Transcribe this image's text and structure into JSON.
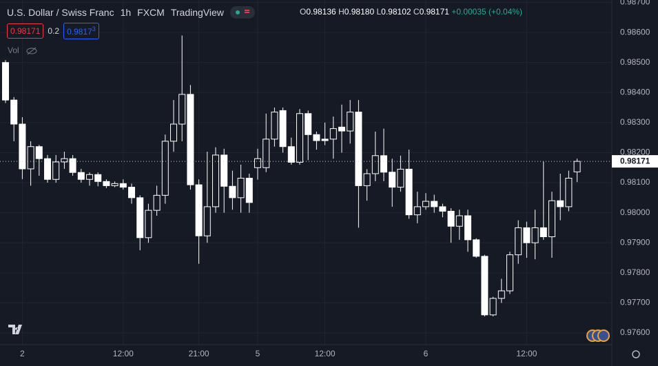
{
  "chart_data": {
    "type": "candlestick",
    "title": "U.S. Dollar / Swiss Franc",
    "interval": "1h",
    "exchange": "FXCM",
    "source": "TradingView",
    "ohlc_legend": [
      {
        "label": "O",
        "value": "0.98136"
      },
      {
        "label": "H",
        "value": "0.98180"
      },
      {
        "label": "L",
        "value": "0.98102"
      },
      {
        "label": "C",
        "value": "0.98171"
      }
    ],
    "change": "+0.00035 (+0.04%)",
    "sell_price": "0.98171",
    "spread": "0.2",
    "buy_price": "0.9817",
    "buy_price_pip": "3",
    "volume_label": "Vol",
    "last_price_label": "0.98171",
    "last_price": 0.98171,
    "categories": [
      null,
      null,
      "2",
      null,
      null,
      null,
      null,
      null,
      null,
      null,
      null,
      null,
      null,
      null,
      "12:00",
      null,
      null,
      null,
      null,
      null,
      null,
      null,
      null,
      "21:00",
      null,
      null,
      null,
      null,
      null,
      null,
      "5",
      null,
      null,
      null,
      null,
      null,
      null,
      null,
      "12:00",
      null,
      null,
      null,
      null,
      null,
      null,
      null,
      null,
      null,
      null,
      null,
      "6",
      null,
      null,
      null,
      null,
      null,
      null,
      null,
      null,
      null,
      null,
      null,
      "12:00",
      null,
      null,
      null,
      null,
      null,
      null
    ],
    "open": [
      0.985,
      0.98375,
      0.98295,
      0.98146,
      0.9822,
      0.9818,
      0.98111,
      0.98169,
      0.9818,
      0.98134,
      0.98111,
      0.98127,
      0.98104,
      0.9809,
      0.98097,
      0.98085,
      0.9805,
      0.97917,
      0.98008,
      0.98058,
      0.98238,
      0.98295,
      0.98394,
      0.98093,
      0.97923,
      0.9802,
      0.98192,
      0.98088,
      0.9805,
      0.98115,
      0.9815,
      0.9815,
      0.98245,
      0.9834,
      0.9822,
      0.98168,
      0.9833,
      0.9826,
      0.98245,
      0.98245,
      0.98285,
      0.98272,
      0.98335,
      0.9809,
      0.9813,
      0.9819,
      0.98135,
      0.98085,
      0.98145,
      0.97993,
      0.9802,
      0.98038,
      0.9802,
      0.98005,
      0.97955,
      0.9799,
      0.9791,
      0.97855,
      0.9766,
      0.97715,
      0.9774,
      0.9786,
      0.9795,
      0.979,
      0.9795,
      0.9792,
      0.9804,
      0.9802,
      0.98136
    ],
    "high": [
      0.98508,
      0.98385,
      0.98318,
      0.98238,
      0.98226,
      0.98192,
      0.98192,
      0.98203,
      0.98192,
      0.98146,
      0.98134,
      0.98134,
      0.98111,
      0.98104,
      0.98111,
      0.98097,
      0.98058,
      0.9803,
      0.9809,
      0.9826,
      0.98375,
      0.9859,
      0.98425,
      0.98111,
      0.98203,
      0.98218,
      0.98213,
      0.9814,
      0.9816,
      0.9813,
      0.98213,
      0.9833,
      0.9835,
      0.9835,
      0.9825,
      0.98345,
      0.9834,
      0.9827,
      0.983,
      0.9832,
      0.9836,
      0.98375,
      0.98375,
      0.98145,
      0.9827,
      0.9828,
      0.9818,
      0.9819,
      0.9821,
      0.9807,
      0.98065,
      0.9806,
      0.9803,
      0.98015,
      0.9801,
      0.9801,
      0.97915,
      0.9786,
      0.9772,
      0.9778,
      0.9787,
      0.97975,
      0.9797,
      0.9801,
      0.9817,
      0.9807,
      0.9813,
      0.9814,
      0.9818
    ],
    "low": [
      0.98365,
      0.98238,
      0.98112,
      0.9809,
      0.98123,
      0.981,
      0.981,
      0.98146,
      0.98123,
      0.981,
      0.9809,
      0.98088,
      0.98082,
      0.98085,
      0.98077,
      0.9803,
      0.97875,
      0.979,
      0.9799,
      0.9803,
      0.98203,
      0.98238,
      0.98077,
      0.9783,
      0.979,
      0.98,
      0.98,
      0.9801,
      0.98,
      0.98,
      0.9811,
      0.98135,
      0.9822,
      0.982,
      0.9816,
      0.9816,
      0.98175,
      0.9821,
      0.98225,
      0.9818,
      0.982,
      0.9823,
      0.9795,
      0.9804,
      0.98105,
      0.98105,
      0.9802,
      0.9807,
      0.9798,
      0.97965,
      0.9801,
      0.98,
      0.97985,
      0.979,
      0.9791,
      0.9787,
      0.9785,
      0.97655,
      0.97655,
      0.977,
      0.9773,
      0.9783,
      0.9785,
      0.97845,
      0.9791,
      0.9785,
      0.97975,
      0.98005,
      0.98102
    ],
    "close": [
      0.98375,
      0.98295,
      0.98146,
      0.9822,
      0.9818,
      0.98111,
      0.98169,
      0.9818,
      0.98134,
      0.98111,
      0.98127,
      0.98104,
      0.9809,
      0.98097,
      0.98085,
      0.9805,
      0.97917,
      0.98008,
      0.98058,
      0.98238,
      0.98295,
      0.98394,
      0.98093,
      0.97923,
      0.9802,
      0.98192,
      0.98088,
      0.9805,
      0.98115,
      0.98034,
      0.9818,
      0.98245,
      0.98335,
      0.9822,
      0.98168,
      0.9833,
      0.9826,
      0.9824,
      0.9824,
      0.9828,
      0.98272,
      0.98335,
      0.9809,
      0.9813,
      0.9819,
      0.98135,
      0.98085,
      0.98145,
      0.97993,
      0.9802,
      0.98038,
      0.9802,
      0.98005,
      0.97955,
      0.9799,
      0.9791,
      0.97855,
      0.9766,
      0.97715,
      0.9774,
      0.9786,
      0.9795,
      0.979,
      0.9795,
      0.9792,
      0.9804,
      0.9802,
      0.98115,
      0.98171
    ],
    "up_color": "#161a25",
    "down_color": "#ffffff",
    "wick_color": "#ffffff",
    "ylim": [
      0.97561,
      0.98708
    ],
    "yticks": [
      {
        "value": 0.987,
        "label": "0.98700"
      },
      {
        "value": 0.986,
        "label": "0.98600"
      },
      {
        "value": 0.985,
        "label": "0.98500"
      },
      {
        "value": 0.984,
        "label": "0.98400"
      },
      {
        "value": 0.983,
        "label": "0.98300"
      },
      {
        "value": 0.982,
        "label": "0.98200"
      },
      {
        "value": 0.981,
        "label": "0.98100"
      },
      {
        "value": 0.98,
        "label": "0.98000"
      },
      {
        "value": 0.979,
        "label": "0.97900"
      },
      {
        "value": 0.978,
        "label": "0.97800"
      },
      {
        "value": 0.977,
        "label": "0.97700"
      },
      {
        "value": 0.976,
        "label": "0.97600"
      }
    ],
    "grid": true
  }
}
